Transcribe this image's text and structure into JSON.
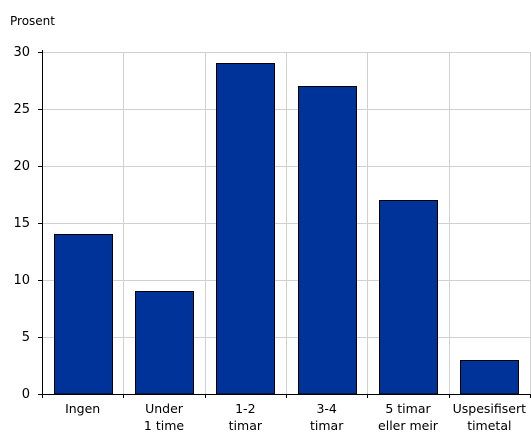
{
  "chart_data": {
    "type": "bar",
    "ylabel": "Prosent",
    "categories": [
      [
        "Ingen"
      ],
      [
        "Under",
        "1 time"
      ],
      [
        "1-2",
        "timar"
      ],
      [
        "3-4",
        "timar"
      ],
      [
        "5 timar",
        "eller meir"
      ],
      [
        "Uspesifisert",
        "timetal"
      ]
    ],
    "values": [
      14,
      9,
      29,
      27,
      17,
      3
    ],
    "ylim": [
      0,
      30
    ],
    "yticks": [
      0,
      5,
      10,
      15,
      20,
      25,
      30
    ],
    "grid": true,
    "colors": {
      "bar": "#003399",
      "bar_stroke": "#000000",
      "grid": "#d0d0d0",
      "axis": "#000000"
    }
  }
}
